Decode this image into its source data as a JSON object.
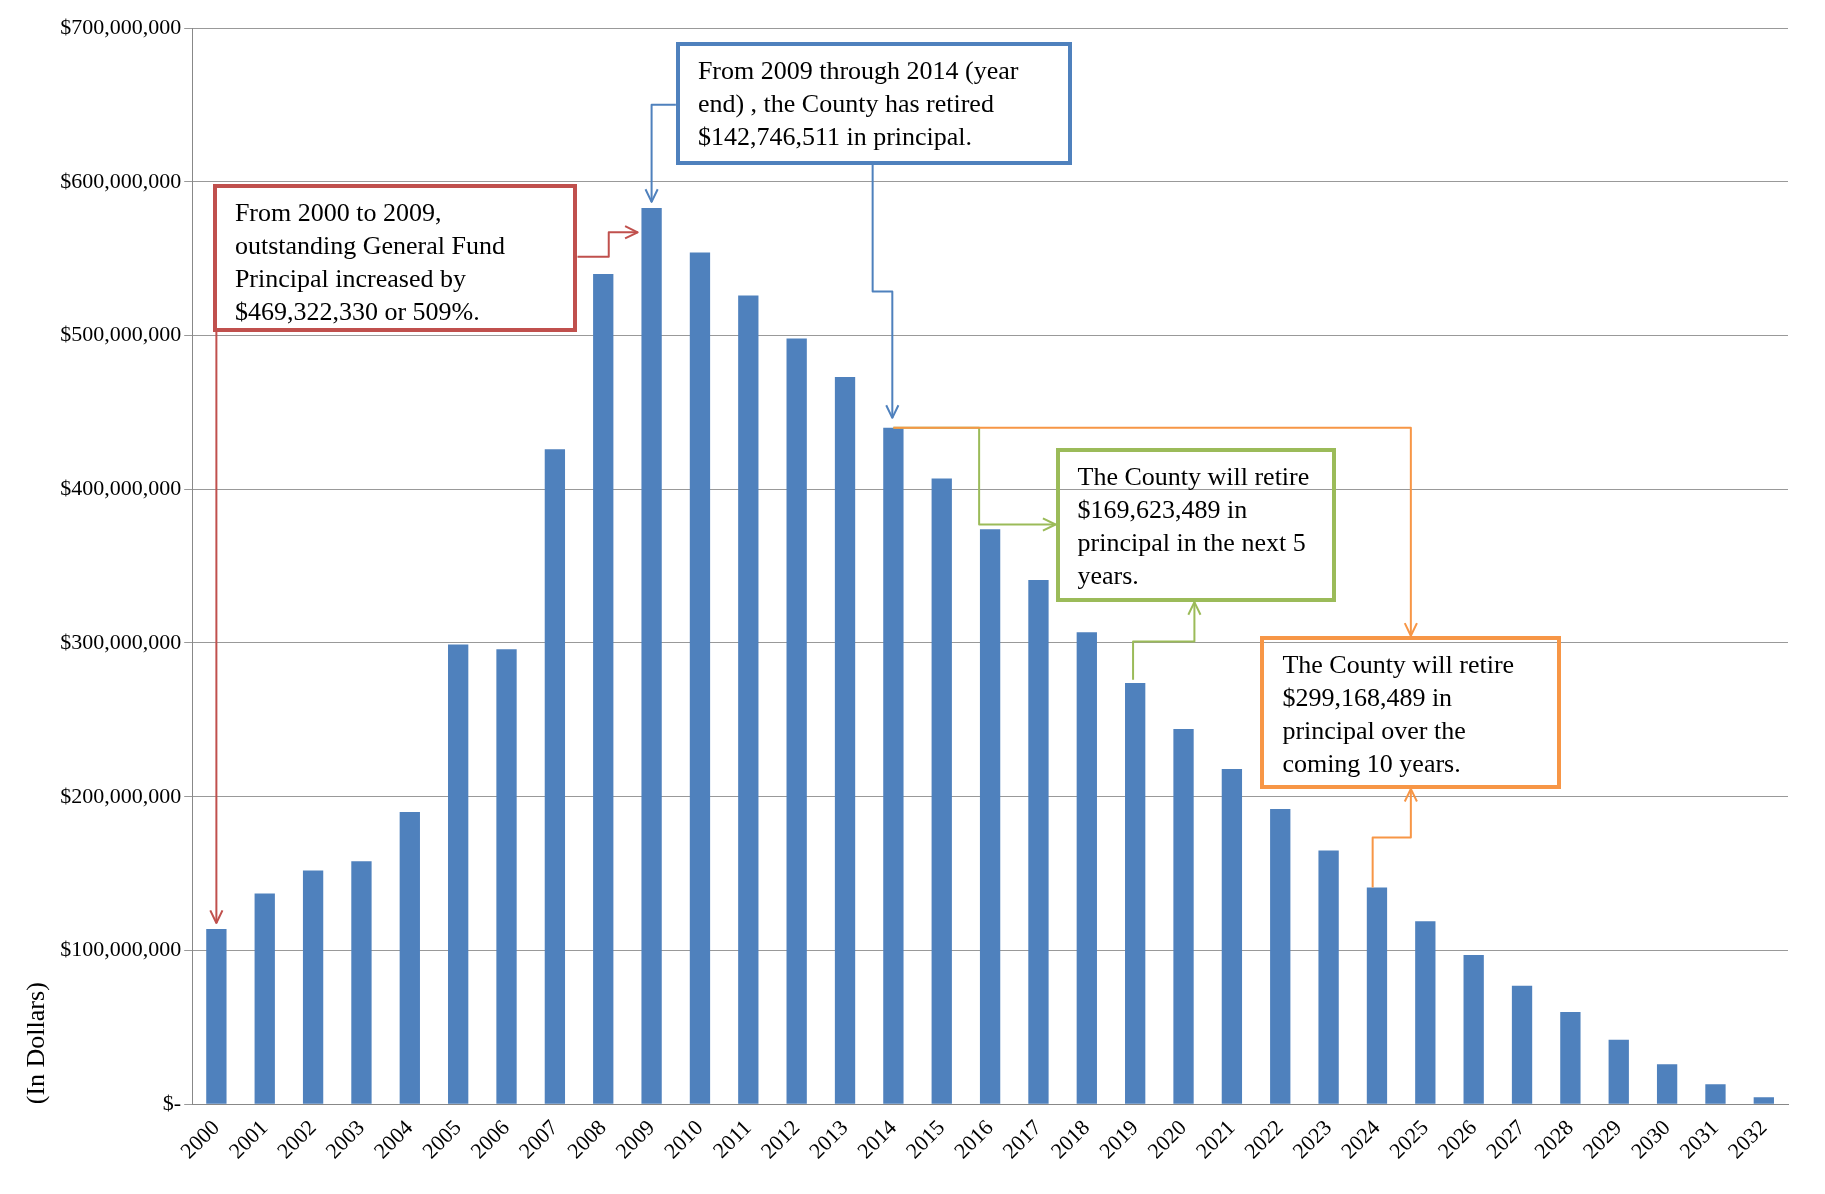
{
  "chart_data": {
    "type": "bar",
    "ylabel": "(In Dollars)",
    "categories": [
      "2000",
      "2001",
      "2002",
      "2003",
      "2004",
      "2005",
      "2006",
      "2007",
      "2008",
      "2009",
      "2010",
      "2011",
      "2012",
      "2013",
      "2014",
      "2015",
      "2016",
      "2017",
      "2018",
      "2019",
      "2020",
      "2021",
      "2022",
      "2023",
      "2024",
      "2025",
      "2026",
      "2027",
      "2028",
      "2029",
      "2030",
      "2031",
      "2032"
    ],
    "values": [
      114000000,
      137000000,
      152000000,
      158000000,
      190000000,
      299000000,
      296000000,
      426000000,
      540000000,
      583000000,
      554000000,
      526000000,
      498000000,
      473000000,
      440000000,
      407000000,
      374000000,
      341000000,
      307000000,
      274000000,
      244000000,
      218000000,
      192000000,
      165000000,
      141000000,
      119000000,
      97000000,
      77000000,
      60000000,
      42000000,
      26000000,
      13000000,
      4500000
    ],
    "color": "#4f81bd",
    "ylim": [
      0,
      700000000
    ],
    "yticks": [
      {
        "value": 0,
        "label": "$-"
      },
      {
        "value": 100000000,
        "label": "$100,000,000"
      },
      {
        "value": 200000000,
        "label": "$200,000,000"
      },
      {
        "value": 300000000,
        "label": "$300,000,000"
      },
      {
        "value": 400000000,
        "label": "$400,000,000"
      },
      {
        "value": 500000000,
        "label": "$500,000,000"
      },
      {
        "value": 600000000,
        "label": "$600,000,000"
      },
      {
        "value": 700000000,
        "label": "$700,000,000"
      }
    ],
    "grid": "y",
    "legend": false,
    "annotations": [
      {
        "text": "From 2000 to 2009, outstanding General Fund Principal increased by $469,322,330 or 509%.",
        "x": "2000",
        "y": 114000000
      },
      {
        "text": "From 2009 through 2014 (year end) , the County has retired $142,746,511 in principal.",
        "x": "2009",
        "y": 583000000
      },
      {
        "text": "The County will retire $169,623,489 in principal in the next 5 years.",
        "x": "2014",
        "y": 440000000
      },
      {
        "text": "The County will retire $299,168,489 in principal over the coming 10 years.",
        "x": "2014",
        "y": 440000000
      }
    ]
  }
}
